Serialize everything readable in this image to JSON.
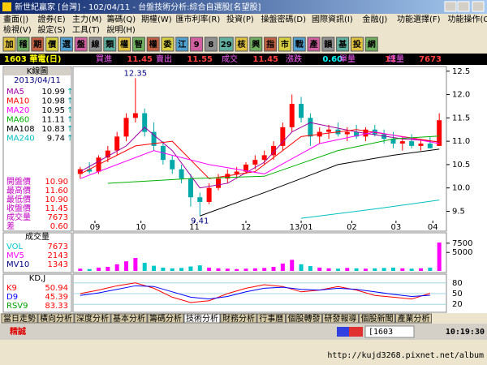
{
  "window": {
    "title": "新世紀贏家 [台灣] - 102/04/11 - 台盤技術分析:綜合自選股[名望股]"
  },
  "menu": [
    "畫面(|)",
    "證券(E)",
    "主力(M)",
    "籌碼(Q)",
    "期權(W)",
    "匯市利率(R)",
    "投資(P)",
    "操盤密碼(D)",
    "國際資訊(I)",
    "金融(J)",
    "功能選擇(F)",
    "功能操作(O)"
  ],
  "menu2": [
    "檢視(V)",
    "設定(S)",
    "工具(T)",
    "說明(H)"
  ],
  "toolbar": [
    "加",
    "稽",
    "期",
    "價",
    "選",
    "盤",
    "線",
    "類",
    "權",
    "智",
    "權",
    "委",
    "江",
    "9",
    "8",
    "29",
    "核",
    "興",
    "指",
    "市",
    "戰",
    "產",
    "韻",
    "基",
    "投",
    "網"
  ],
  "quote": {
    "stock": "1603 華電(日)",
    "fields": [
      {
        "label": "買進",
        "value": "11.45"
      },
      {
        "label": "賣出",
        "value": "11.55"
      },
      {
        "label": "成交",
        "value": "11.45"
      },
      {
        "label": "漲跌",
        "value": "0.60"
      },
      {
        "label": "單量",
        "value": "11"
      },
      {
        "label": "總量",
        "value": "7673"
      }
    ]
  },
  "side": {
    "title": "K線圖",
    "date": "2013/04/11",
    "stats": [
      {
        "label": "開盤價",
        "value": "10.90"
      },
      {
        "label": "最高價",
        "value": "11.60"
      },
      {
        "label": "最低價",
        "value": "10.90"
      },
      {
        "label": "收盤價",
        "value": "11.45"
      },
      {
        "label": "成交量",
        "value": "7673"
      },
      {
        "label": "差",
        "value": "0.60"
      }
    ]
  },
  "chart_data": [
    {
      "type": "candlestick",
      "up_color": "#ff0000",
      "down_color": "#00a8a8",
      "xlim": [
        -0.6,
        39.6
      ],
      "ylim": [
        9.3,
        12.6
      ],
      "yticks": [
        12.5,
        {
          "value": 12,
          "label": "12.0"
        },
        11.5,
        {
          "value": 11,
          "label": "11.0"
        },
        10.5,
        {
          "value": 10,
          "label": "10.0"
        },
        9.5
      ],
      "xticks": [
        {
          "value": 1.6,
          "label": "09"
        },
        {
          "value": 6.6,
          "label": "10"
        },
        {
          "value": 12.4,
          "label": "11"
        },
        {
          "value": 18,
          "label": "12"
        },
        {
          "value": 24,
          "label": "13/01"
        },
        {
          "value": 29.5,
          "label": "02"
        },
        {
          "value": 34.3,
          "label": "03"
        },
        {
          "value": 38.3,
          "label": "04"
        }
      ],
      "candles": [
        [
          10.3,
          10.45,
          10.2,
          10.4
        ],
        [
          10.4,
          10.55,
          10.3,
          10.35
        ],
        [
          10.35,
          10.7,
          10.3,
          10.65
        ],
        [
          10.65,
          10.9,
          10.55,
          10.8
        ],
        [
          10.8,
          11.2,
          10.7,
          11.1
        ],
        [
          11.1,
          11.6,
          11,
          11.5
        ],
        [
          11.5,
          12.35,
          11.4,
          11.6
        ],
        [
          11.6,
          11.7,
          11.1,
          11.2
        ],
        [
          11.2,
          11.4,
          10.8,
          10.9
        ],
        [
          10.9,
          11,
          10.5,
          10.6
        ],
        [
          10.6,
          10.7,
          10.3,
          10.4
        ],
        [
          10.4,
          10.5,
          10.1,
          10.2
        ],
        [
          10.2,
          10.3,
          9.6,
          9.8
        ],
        [
          9.8,
          9.9,
          9.41,
          9.7
        ],
        [
          9.7,
          10.1,
          9.65,
          10
        ],
        [
          10,
          10.3,
          9.95,
          10.2
        ],
        [
          10.2,
          10.4,
          10.1,
          10.3
        ],
        [
          10.3,
          10.45,
          10.2,
          10.35
        ],
        [
          10.35,
          10.55,
          10.3,
          10.5
        ],
        [
          10.5,
          10.7,
          10.4,
          10.6
        ],
        [
          10.6,
          10.8,
          10.5,
          10.7
        ],
        [
          10.7,
          11,
          10.6,
          10.9
        ],
        [
          10.9,
          11.4,
          10.8,
          11.3
        ],
        [
          11.3,
          12,
          11.2,
          11.8
        ],
        [
          11.8,
          11.95,
          11.4,
          11.5
        ],
        [
          11.5,
          11.6,
          10.9,
          11.1
        ],
        [
          11.1,
          11.3,
          10.95,
          11.2
        ],
        [
          11.2,
          11.35,
          11.05,
          11.25
        ],
        [
          11.25,
          11.4,
          11.1,
          11.15
        ],
        [
          11.15,
          11.3,
          11,
          11.2
        ],
        [
          11.2,
          11.35,
          11.05,
          11.1
        ],
        [
          11.1,
          11.3,
          11,
          11.25
        ],
        [
          11.25,
          11.35,
          11.1,
          11.15
        ],
        [
          11.15,
          11.25,
          10.95,
          11.05
        ],
        [
          11.05,
          11.2,
          10.85,
          10.95
        ],
        [
          10.95,
          11.1,
          10.8,
          11
        ],
        [
          11,
          11.15,
          10.85,
          10.9
        ],
        [
          10.9,
          11.05,
          10.8,
          10.95
        ],
        [
          10.95,
          11.1,
          10.85,
          10.85
        ],
        [
          10.9,
          11.6,
          10.9,
          11.45
        ]
      ],
      "series": [
        {
          "name": "MA5",
          "color": "#a000a0",
          "legend_value": "10.99",
          "x": [
            0,
            5,
            7,
            10,
            13,
            16,
            20,
            23,
            25,
            30,
            35,
            39
          ],
          "values": [
            10.35,
            10.9,
            11.3,
            10.8,
            10,
            10.1,
            10.55,
            11.2,
            11.4,
            11.2,
            11.05,
            10.99
          ]
        },
        {
          "name": "MA10",
          "color": "#ff0000",
          "legend_value": "10.98",
          "x": [
            0,
            6,
            10,
            14,
            19,
            24,
            30,
            39
          ],
          "values": [
            10.3,
            10.9,
            11,
            10.2,
            10.35,
            11.1,
            11.25,
            10.98
          ]
        },
        {
          "name": "MA20",
          "color": "#ff00ff",
          "legend_value": "10.95",
          "x": [
            0,
            8,
            14,
            20,
            26,
            32,
            39
          ],
          "values": [
            10.2,
            10.8,
            10.5,
            10.3,
            10.95,
            11.2,
            10.95
          ]
        },
        {
          "name": "MA60",
          "color": "#00b000",
          "legend_value": "11.11",
          "x": [
            3,
            12,
            20,
            28,
            34,
            39
          ],
          "values": [
            10.1,
            10.2,
            10.25,
            10.8,
            11.05,
            11.11
          ]
        },
        {
          "name": "MA108",
          "color": "#000000",
          "legend_value": "10.83",
          "x": [
            13,
            20,
            28,
            34,
            39
          ],
          "values": [
            9.4,
            9.9,
            10.5,
            10.7,
            10.83
          ]
        },
        {
          "name": "MA240",
          "color": "#00c0c0",
          "legend_value": "9.74",
          "x": [
            24,
            32,
            39
          ],
          "values": [
            9.35,
            9.55,
            9.74
          ]
        }
      ]
    },
    {
      "type": "bar",
      "title": "成交量",
      "xlim": [
        -0.6,
        39.6
      ],
      "ylim": [
        0,
        9000
      ],
      "yticks": [
        7500,
        5000
      ],
      "up_color": "#ff00ff",
      "down_color": "#00c8c8",
      "legend": [
        {
          "name": "VOL",
          "value": "7673",
          "color": "#00c8c8"
        },
        {
          "name": "MV5",
          "value": "2143",
          "color": "#ff00ff"
        },
        {
          "name": "MV10",
          "value": "1343",
          "color": "#000080"
        }
      ],
      "values": [
        600,
        500,
        900,
        1100,
        1800,
        2600,
        3500,
        2200,
        1400,
        900,
        700,
        800,
        1200,
        1500,
        900,
        700,
        600,
        500,
        600,
        700,
        800,
        1100,
        2000,
        3000,
        1800,
        1300,
        900,
        700,
        600,
        800,
        700,
        600,
        700,
        800,
        900,
        700,
        600,
        700,
        900,
        7673
      ]
    },
    {
      "type": "line",
      "title": "KD,J",
      "xlim": [
        -0.6,
        39.6
      ],
      "ylim": [
        0,
        100
      ],
      "yticks": [
        80,
        50,
        20
      ],
      "x": [
        0,
        2,
        4,
        6,
        8,
        10,
        12,
        14,
        16,
        18,
        20,
        22,
        24,
        26,
        28,
        30,
        32,
        34,
        36,
        38
      ],
      "series": [
        {
          "name": "K9",
          "color": "#ff0000",
          "legend_value": "50.94",
          "values": [
            50,
            60,
            72,
            80,
            65,
            40,
            25,
            30,
            50,
            65,
            75,
            70,
            55,
            60,
            70,
            60,
            45,
            40,
            35,
            50.94
          ]
        },
        {
          "name": "D9",
          "color": "#0000ff",
          "legend_value": "45.39",
          "values": [
            45,
            52,
            62,
            72,
            70,
            55,
            40,
            35,
            42,
            55,
            65,
            68,
            62,
            60,
            65,
            62,
            55,
            48,
            42,
            45.39
          ]
        }
      ],
      "extra_legend": {
        "name": "RSV9",
        "value": "83.33"
      }
    }
  ],
  "tabs": [
    "當日走勢",
    "橫向分析",
    "深度分析",
    "基本分析",
    "籌碼分析",
    "技術分析",
    "財務分析",
    "行事曆",
    "個股轉發",
    "研發報導",
    "個股新聞",
    "產業分析"
  ],
  "status": {
    "brand": "精誠",
    "code": "[1603",
    "time": "10:19:30"
  },
  "footer": {
    "url": "http://kujd3268.pixnet.net/album"
  }
}
